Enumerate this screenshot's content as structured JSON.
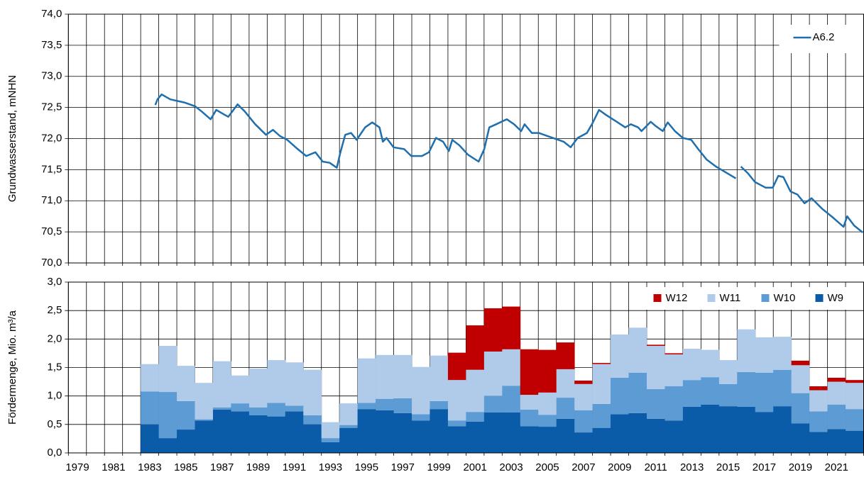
{
  "chart_data": [
    {
      "type": "line",
      "y_label": "Grundwasserstand, mNHN",
      "xlim": [
        1979,
        2023
      ],
      "xticks": [
        1979,
        1980,
        1981,
        1982,
        1983,
        1984,
        1985,
        1986,
        1987,
        1988,
        1989,
        1990,
        1991,
        1992,
        1993,
        1994,
        1995,
        1996,
        1997,
        1998,
        1999,
        2000,
        2001,
        2002,
        2003,
        2004,
        2005,
        2006,
        2007,
        2008,
        2009,
        2010,
        2011,
        2012,
        2013,
        2014,
        2015,
        2016,
        2017,
        2018,
        2019,
        2020,
        2021,
        2022,
        2023
      ],
      "ylim": [
        70,
        74
      ],
      "yticks": [
        {
          "value": 70,
          "label": "70,0"
        },
        {
          "value": 70.5,
          "label": "70,5"
        },
        {
          "value": 71,
          "label": "71,0"
        },
        {
          "value": 71.5,
          "label": "71,5"
        },
        {
          "value": 72,
          "label": "72,0"
        },
        {
          "value": 72.5,
          "label": "72,5"
        },
        {
          "value": 73,
          "label": "73,0"
        },
        {
          "value": 73.5,
          "label": "73,5"
        },
        {
          "value": 74,
          "label": "74,0"
        }
      ],
      "grid": true,
      "legend": "upper right",
      "series": [
        {
          "name": "A6.2",
          "color": "#1f6fae",
          "x": [
            1983.81,
            1983.93,
            1984.16,
            1984.64,
            1985.42,
            1986.01,
            1986.4,
            1986.87,
            1987.18,
            1987.66,
            1987.85,
            1988.36,
            1988.75,
            1989.34,
            1989.93,
            1990.32,
            1990.71,
            1991.11,
            1991.69,
            1992.16,
            1992.67,
            1993.07,
            1993.46,
            1993.85,
            1994.05,
            1994.32,
            1994.64,
            1994.95,
            1995.42,
            1995.81,
            1996.21,
            1996.4,
            1996.6,
            1996.99,
            1997.58,
            1997.97,
            1998.56,
            1998.95,
            1999.34,
            1999.73,
            2000.05,
            2000.24,
            2000.64,
            2001.11,
            2001.7,
            2002.01,
            2002.29,
            2002.67,
            2003.26,
            2003.66,
            2004.05,
            2004.24,
            2004.64,
            2005.03,
            2005.62,
            2006.4,
            2006.79,
            2007.18,
            2007.69,
            2007.97,
            2008.36,
            2008.75,
            2009.34,
            2009.81,
            2010.12,
            2010.52,
            2010.71,
            2011.22,
            2011.5,
            2011.89,
            2012.16,
            2012.56,
            2012.99,
            2013.46,
            2013.85,
            2014.32,
            2014.83,
            2015.93,
            2016.05,
            2016.21,
            2016.6,
            2016.99,
            2017.58,
            2017.97,
            2018.28,
            2018.56,
            2018.95,
            2019.34,
            2019.73,
            2020.12,
            2020.71,
            2021.3,
            2021.89,
            2022.09,
            2022.48,
            2022.95
          ],
          "values": [
            72.54,
            72.63,
            72.71,
            72.63,
            72.58,
            72.52,
            72.43,
            72.31,
            72.46,
            72.38,
            72.35,
            72.55,
            72.44,
            72.23,
            72.06,
            72.14,
            72.04,
            71.98,
            71.83,
            71.72,
            71.78,
            71.63,
            71.61,
            71.53,
            71.78,
            72.06,
            72.09,
            71.98,
            72.18,
            72.26,
            72.18,
            71.95,
            72.01,
            71.86,
            71.83,
            71.72,
            71.72,
            71.78,
            72.01,
            71.95,
            71.8,
            71.98,
            71.89,
            71.74,
            71.63,
            71.83,
            72.18,
            72.23,
            72.31,
            72.23,
            72.12,
            72.23,
            72.09,
            72.09,
            72.03,
            71.95,
            71.86,
            72.01,
            72.09,
            72.23,
            72.46,
            72.38,
            72.27,
            72.18,
            72.23,
            72.18,
            72.12,
            72.27,
            72.2,
            72.12,
            72.26,
            72.12,
            72.01,
            71.98,
            71.83,
            71.66,
            71.55,
            71.36,
            null,
            71.55,
            71.44,
            71.3,
            71.21,
            71.21,
            71.4,
            71.38,
            71.15,
            71.1,
            70.96,
            71.04,
            70.87,
            70.73,
            70.58,
            70.75,
            70.6,
            70.49
          ]
        }
      ]
    },
    {
      "type": "stacked-bar",
      "y_label": "Fördermenge, Mio. m³/a",
      "categories": [
        "1979",
        null,
        "1981",
        null,
        "1983",
        null,
        "1985",
        null,
        "1987",
        null,
        "1989",
        null,
        "1991",
        null,
        "1993",
        null,
        "1995",
        null,
        "1997",
        null,
        "1999",
        null,
        "2001",
        null,
        "2003",
        null,
        "2005",
        null,
        "2007",
        null,
        "2009",
        null,
        "2011",
        null,
        "2013",
        null,
        "2015",
        null,
        "2017",
        null,
        "2019",
        null,
        "2021",
        null
      ],
      "ylim": [
        0,
        3
      ],
      "yticks": [
        {
          "value": 0,
          "label": "0,0"
        },
        {
          "value": 0.5,
          "label": "0,5"
        },
        {
          "value": 1,
          "label": "1,0"
        },
        {
          "value": 1.5,
          "label": "1,5"
        },
        {
          "value": 2,
          "label": "2,0"
        },
        {
          "value": 2.5,
          "label": "2,5"
        },
        {
          "value": 3,
          "label": "3,0"
        }
      ],
      "grid": true,
      "legend": "upper right",
      "series": [
        {
          "name": "W9",
          "color": "#0b5ca8",
          "values": [
            null,
            null,
            null,
            null,
            0.5,
            0.26,
            0.41,
            0.57,
            0.76,
            0.73,
            0.66,
            0.64,
            0.73,
            0.5,
            0.19,
            0.44,
            0.77,
            0.75,
            0.7,
            0.57,
            0.77,
            0.47,
            0.55,
            0.71,
            0.71,
            0.47,
            0.46,
            0.6,
            0.36,
            0.44,
            0.68,
            0.7,
            0.6,
            0.57,
            0.81,
            0.85,
            0.82,
            0.81,
            0.72,
            0.82,
            0.52,
            0.37,
            0.42,
            0.39
          ]
        },
        {
          "name": "W10",
          "color": "#5d9bd5",
          "values": [
            null,
            null,
            null,
            null,
            0.58,
            0.81,
            0.5,
            0.02,
            0.04,
            0.14,
            0.14,
            0.24,
            0.1,
            0.16,
            0.07,
            0.05,
            0.11,
            0.2,
            0.26,
            0.11,
            0.14,
            0.1,
            0.17,
            0.29,
            0.47,
            0.29,
            0.21,
            0.37,
            0.39,
            0.42,
            0.64,
            0.71,
            0.52,
            0.6,
            0.47,
            0.48,
            0.39,
            0.61,
            0.69,
            0.64,
            0.53,
            0.36,
            0.43,
            0.38
          ]
        },
        {
          "name": "W11",
          "color": "#b0cbe9",
          "values": [
            null,
            null,
            null,
            null,
            0.48,
            0.81,
            0.62,
            0.64,
            0.81,
            0.49,
            0.68,
            0.75,
            0.76,
            0.8,
            0.28,
            0.38,
            0.78,
            0.77,
            0.76,
            0.83,
            0.8,
            0.71,
            0.74,
            0.78,
            0.64,
            0.26,
            0.39,
            0.5,
            0.46,
            0.7,
            0.76,
            0.79,
            0.76,
            0.56,
            0.55,
            0.48,
            0.42,
            0.75,
            0.62,
            0.58,
            0.49,
            0.37,
            0.4,
            0.46
          ]
        },
        {
          "name": "W12",
          "color": "#c00000",
          "values": [
            null,
            null,
            null,
            null,
            null,
            null,
            null,
            null,
            null,
            null,
            null,
            null,
            null,
            null,
            null,
            null,
            null,
            null,
            null,
            null,
            null,
            0.48,
            0.78,
            0.76,
            0.75,
            0.8,
            0.75,
            0.47,
            0.06,
            0.02,
            null,
            null,
            0.02,
            0.02,
            null,
            null,
            null,
            null,
            null,
            null,
            0.08,
            0.07,
            0.07,
            0.05
          ]
        }
      ]
    }
  ]
}
